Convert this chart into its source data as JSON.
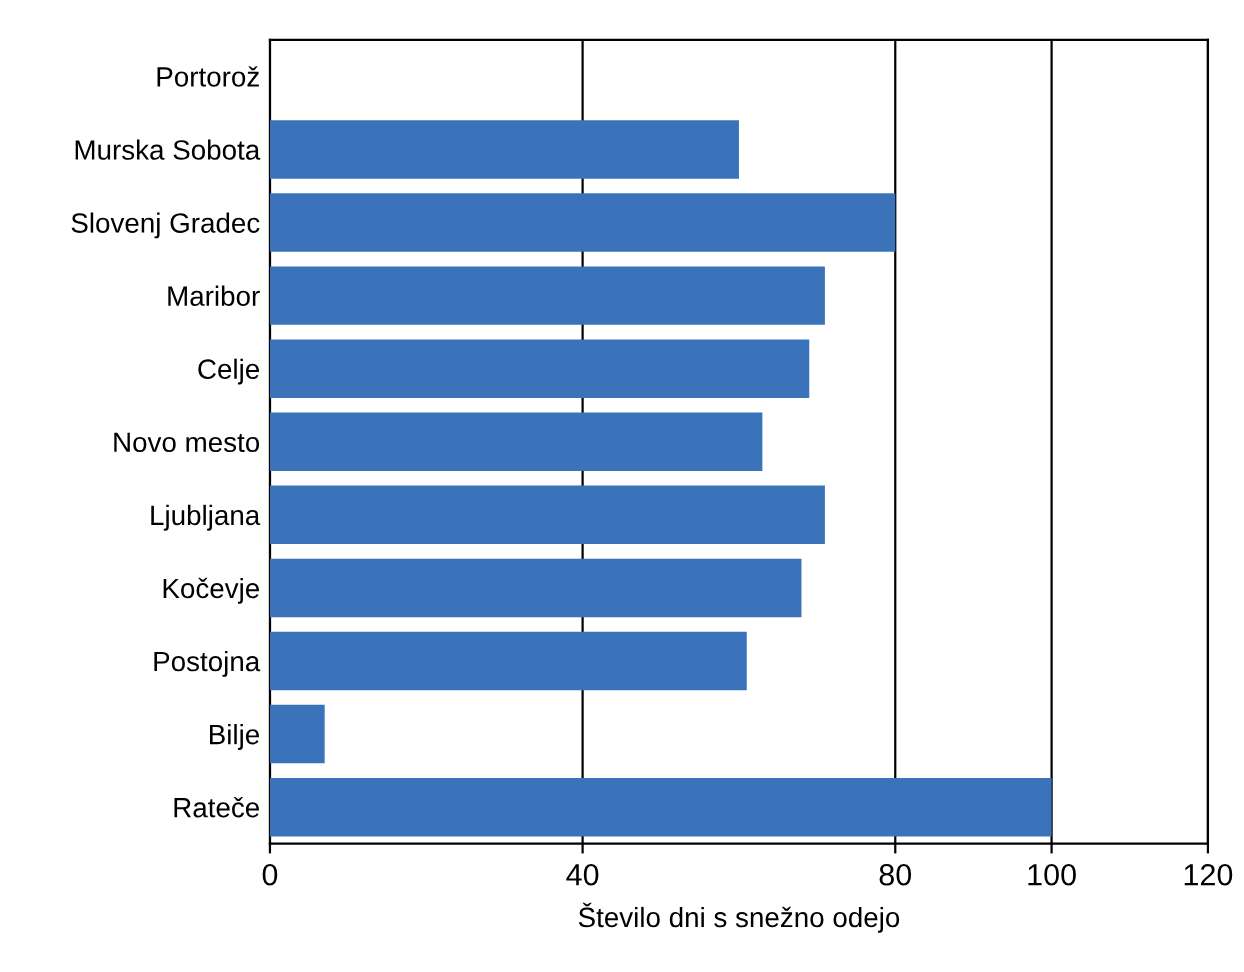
{
  "chart_data": {
    "type": "bar",
    "orientation": "horizontal",
    "xlabel": "Število dni s snežno odejo",
    "categories": [
      "Portorož",
      "Murska Sobota",
      "Slovenj Gradec",
      "Maribor",
      "Celje",
      "Novo mesto",
      "Ljubljana",
      "Kočevje",
      "Postojna",
      "Bilje",
      "Rateče"
    ],
    "values": [
      0,
      60,
      80,
      71,
      69,
      63,
      71,
      68,
      61,
      7,
      100
    ],
    "color": "#3a73ba",
    "xlim": [
      0,
      120
    ],
    "xticks": [
      0,
      40,
      80,
      100,
      120
    ],
    "grid": "x",
    "legend": false
  }
}
